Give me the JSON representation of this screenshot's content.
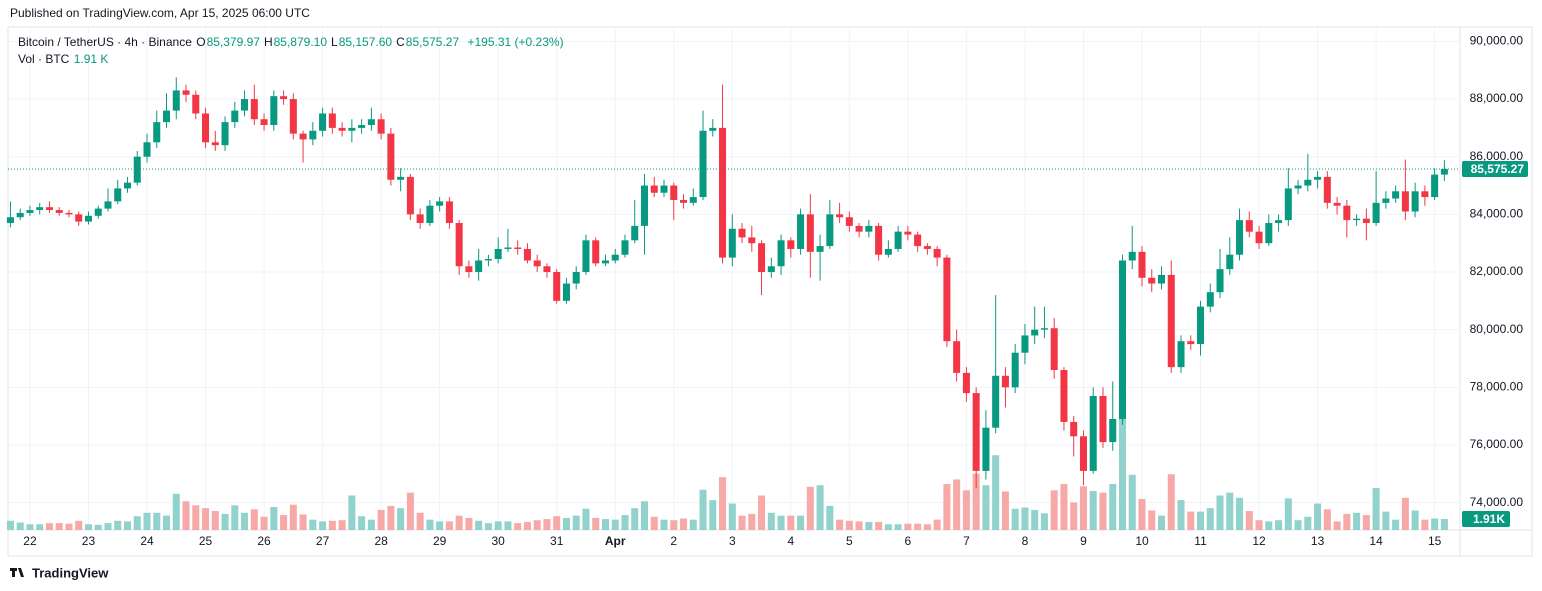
{
  "header": {
    "published": "Published on TradingView.com, Apr 15, 2025 06:00 UTC",
    "symbol": "Bitcoin / TetherUS · 4h · Binance",
    "ohlc": [
      {
        "key": "O",
        "value": "85,379.97"
      },
      {
        "key": "H",
        "value": "85,879.10"
      },
      {
        "key": "L",
        "value": "85,157.60"
      },
      {
        "key": "C",
        "value": "85,575.27"
      }
    ],
    "change": "+195.31 (+0.23%)",
    "vol_name": "Vol · BTC",
    "vol_value": "1.91 K"
  },
  "footer": {
    "brand": "TradingView"
  },
  "chart_data": {
    "type": "candlestick",
    "up_color": "#089981",
    "down_color": "#f23645",
    "volume_up_color": "#92d2cc",
    "volume_down_color": "#f7a9a7",
    "grid": true,
    "ylim": [
      73050,
      90500
    ],
    "yticks": [
      {
        "value": 74000,
        "label": "74,000.00"
      },
      {
        "value": 76000,
        "label": "76,000.00"
      },
      {
        "value": 78000,
        "label": "78,000.00"
      },
      {
        "value": 80000,
        "label": "80,000.00"
      },
      {
        "value": 82000,
        "label": "82,000.00"
      },
      {
        "value": 84000,
        "label": "84,000.00"
      },
      {
        "value": 86000,
        "label": "86,000.00"
      },
      {
        "value": 88000,
        "label": "88,000.00"
      },
      {
        "value": 90000,
        "label": "90,000.00"
      }
    ],
    "xlim": [
      -0.25,
      148.6
    ],
    "xticks": [
      {
        "value": 2,
        "label": "22"
      },
      {
        "value": 8,
        "label": "23"
      },
      {
        "value": 14,
        "label": "24"
      },
      {
        "value": 20,
        "label": "25"
      },
      {
        "value": 26,
        "label": "26"
      },
      {
        "value": 32,
        "label": "27"
      },
      {
        "value": 38,
        "label": "28"
      },
      {
        "value": 44,
        "label": "29"
      },
      {
        "value": 50,
        "label": "30"
      },
      {
        "value": 56,
        "label": "31"
      },
      {
        "value": 62,
        "label": "Apr"
      },
      {
        "value": 68,
        "label": "2"
      },
      {
        "value": 74,
        "label": "3"
      },
      {
        "value": 80,
        "label": "4"
      },
      {
        "value": 86,
        "label": "5"
      },
      {
        "value": 92,
        "label": "6"
      },
      {
        "value": 98,
        "label": "7"
      },
      {
        "value": 104,
        "label": "8"
      },
      {
        "value": 110,
        "label": "9"
      },
      {
        "value": 116,
        "label": "10"
      },
      {
        "value": 122,
        "label": "11"
      },
      {
        "value": 128,
        "label": "12"
      },
      {
        "value": 134,
        "label": "13"
      },
      {
        "value": 140,
        "label": "14"
      },
      {
        "value": 146,
        "label": "15"
      }
    ],
    "open": [
      83700,
      83900,
      84050,
      84150,
      84250,
      84150,
      84050,
      84000,
      83750,
      83950,
      84200,
      84450,
      84900,
      85100,
      86000,
      86500,
      87200,
      87600,
      88300,
      88150,
      87500,
      86500,
      86400,
      87200,
      87600,
      88000,
      87300,
      87100,
      88100,
      88000,
      86800,
      86600,
      86900,
      87500,
      87000,
      86900,
      87000,
      87100,
      87300,
      86800,
      85200,
      85300,
      84000,
      83700,
      84300,
      84450,
      83700,
      82200,
      82000,
      82400,
      82450,
      82800,
      82850,
      82800,
      82400,
      82200,
      82000,
      81000,
      81600,
      82000,
      83100,
      82300,
      82400,
      82600,
      83100,
      83600,
      85000,
      84750,
      85000,
      84500,
      84400,
      84600,
      86900,
      87000,
      82500,
      83500,
      83200,
      83000,
      82000,
      82200,
      83100,
      82800,
      84000,
      82700,
      82900,
      84000,
      83900,
      83600,
      83400,
      83600,
      82600,
      82800,
      83400,
      83300,
      82900,
      82800,
      82500,
      79600,
      78500,
      77800,
      75100,
      76600,
      78400,
      78000,
      79200,
      79800,
      80000,
      80050,
      78600,
      76800,
      76300,
      75100,
      77700,
      76100,
      76900,
      82400,
      82700,
      81800,
      81600,
      81900,
      78700,
      79600,
      79500,
      80800,
      81300,
      82100,
      82600,
      83800,
      83400,
      83000,
      83700,
      83800,
      84900,
      85000,
      85200,
      85300,
      84400,
      84300,
      83800,
      83850,
      83700,
      84400,
      84550,
      84800,
      84100,
      84800,
      84600,
      85379.97
    ],
    "high": [
      84450,
      84200,
      84300,
      84400,
      84450,
      84250,
      84150,
      84100,
      84100,
      84300,
      84900,
      85200,
      85300,
      86200,
      86800,
      87600,
      88200,
      88750,
      88500,
      88300,
      87700,
      86900,
      87400,
      87900,
      88300,
      88500,
      87500,
      88300,
      88300,
      88200,
      86900,
      87200,
      87700,
      87700,
      87200,
      87300,
      87300,
      87700,
      87500,
      87000,
      85600,
      85400,
      84200,
      84500,
      84600,
      84600,
      83800,
      82400,
      82800,
      82600,
      83200,
      83500,
      83100,
      83000,
      82600,
      82300,
      82100,
      81800,
      82200,
      83300,
      83200,
      82600,
      82800,
      83300,
      84500,
      85400,
      85300,
      85200,
      85100,
      84700,
      84900,
      87600,
      87300,
      88500,
      84000,
      83700,
      83600,
      83100,
      82500,
      83300,
      83200,
      84200,
      84700,
      83300,
      84500,
      84400,
      84100,
      83700,
      83800,
      83700,
      83100,
      83600,
      83600,
      83400,
      83000,
      82900,
      82600,
      80000,
      78700,
      78000,
      77200,
      81200,
      78700,
      79500,
      80200,
      80800,
      80800,
      80400,
      78700,
      77000,
      76500,
      78000,
      78000,
      78200,
      82600,
      83600,
      82900,
      82100,
      82200,
      82400,
      79800,
      79800,
      81000,
      81600,
      82800,
      83200,
      84200,
      84100,
      83600,
      84000,
      84000,
      85600,
      85200,
      86100,
      85500,
      85500,
      84600,
      84500,
      84000,
      84200,
      85500,
      84800,
      85000,
      85900,
      85100,
      85000,
      85600,
      85879.1
    ],
    "low": [
      83550,
      83800,
      83950,
      84000,
      84050,
      83950,
      83900,
      83600,
      83650,
      83850,
      84100,
      84350,
      84750,
      85000,
      85800,
      86300,
      87000,
      87300,
      87900,
      87300,
      86300,
      86200,
      86200,
      87000,
      87400,
      87100,
      86900,
      86900,
      87800,
      86600,
      85800,
      86400,
      86700,
      86800,
      86700,
      86500,
      86800,
      86900,
      86600,
      85000,
      84800,
      83800,
      83500,
      83600,
      84100,
      83500,
      81900,
      81800,
      81700,
      82200,
      82300,
      82700,
      82600,
      82300,
      82000,
      81800,
      80900,
      80900,
      81400,
      81900,
      82200,
      82200,
      82300,
      82500,
      83000,
      82600,
      84600,
      84600,
      83800,
      84200,
      84300,
      84500,
      86700,
      82300,
      82200,
      83000,
      82700,
      81200,
      81800,
      81900,
      82500,
      82600,
      81800,
      81700,
      82800,
      83700,
      83400,
      83200,
      83200,
      82400,
      82500,
      82700,
      83100,
      82700,
      82600,
      82200,
      79400,
      78200,
      77500,
      74500,
      74800,
      76400,
      77300,
      77800,
      78800,
      79500,
      79700,
      78300,
      76500,
      75600,
      74600,
      75000,
      75900,
      75800,
      76700,
      82100,
      81500,
      81300,
      81400,
      78500,
      78500,
      79300,
      79100,
      80600,
      81100,
      81900,
      82400,
      83200,
      82800,
      82900,
      83400,
      83600,
      84700,
      84800,
      84900,
      84200,
      84000,
      83200,
      83600,
      83100,
      83600,
      84200,
      84400,
      83800,
      83900,
      84300,
      84500,
      85157.6
    ],
    "close": [
      83900,
      84050,
      84150,
      84250,
      84150,
      84050,
      84000,
      83750,
      83950,
      84200,
      84450,
      84900,
      85100,
      86000,
      86500,
      87200,
      87600,
      88300,
      88150,
      87500,
      86500,
      86400,
      87200,
      87600,
      88000,
      87300,
      87100,
      88100,
      88000,
      86800,
      86600,
      86900,
      87500,
      87000,
      86900,
      87000,
      87100,
      87300,
      86800,
      85200,
      85300,
      84000,
      83700,
      84300,
      84450,
      83700,
      82200,
      82000,
      82400,
      82450,
      82800,
      82850,
      82800,
      82400,
      82200,
      82000,
      81000,
      81600,
      82000,
      83100,
      82300,
      82400,
      82600,
      83100,
      83600,
      85000,
      84750,
      85000,
      84500,
      84400,
      84600,
      86900,
      87000,
      82500,
      83500,
      83200,
      83000,
      82000,
      82200,
      83100,
      82800,
      84000,
      82700,
      82900,
      84000,
      83900,
      83600,
      83400,
      83600,
      82600,
      82800,
      83400,
      83300,
      82900,
      82800,
      82500,
      79600,
      78500,
      77800,
      75100,
      76600,
      78400,
      78000,
      79200,
      79800,
      80000,
      80050,
      78600,
      76800,
      76300,
      75100,
      77700,
      76100,
      76900,
      82400,
      82700,
      81800,
      81600,
      81900,
      78700,
      79600,
      79500,
      80800,
      81300,
      82100,
      82600,
      83800,
      83400,
      83000,
      83700,
      83800,
      84900,
      85000,
      85200,
      85300,
      84400,
      84300,
      83800,
      83850,
      83700,
      84400,
      84550,
      84800,
      84100,
      84800,
      84600,
      85379.97,
      85575.27
    ],
    "volume": [
      1600,
      1300,
      1000,
      1000,
      1200,
      1200,
      1100,
      1600,
      1000,
      900,
      1200,
      1600,
      1500,
      2400,
      3000,
      3000,
      2500,
      6300,
      5000,
      4300,
      3800,
      3300,
      2800,
      4300,
      3000,
      3600,
      2300,
      4000,
      2600,
      4400,
      2700,
      1800,
      1500,
      1600,
      1700,
      6000,
      2400,
      1800,
      3500,
      4200,
      3800,
      6500,
      3000,
      1800,
      1500,
      1500,
      2500,
      2100,
      1600,
      1200,
      1500,
      1500,
      1200,
      1400,
      1700,
      1900,
      2400,
      2100,
      2500,
      3700,
      2100,
      1900,
      1800,
      2600,
      3800,
      5000,
      2300,
      1800,
      1700,
      2000,
      1800,
      7000,
      5200,
      9200,
      4600,
      2500,
      2800,
      6000,
      3000,
      2500,
      2500,
      2500,
      7500,
      7800,
      4200,
      1800,
      1600,
      1500,
      1400,
      1400,
      1000,
      1000,
      1100,
      1100,
      1000,
      1800,
      8000,
      8800,
      6900,
      9800,
      7800,
      13000,
      6700,
      3700,
      3900,
      3500,
      2900,
      6900,
      8000,
      4800,
      7600,
      6800,
      6500,
      8000,
      21000,
      9600,
      5400,
      3400,
      2500,
      9700,
      5200,
      3200,
      3200,
      3800,
      6000,
      6500,
      5600,
      3300,
      1700,
      1500,
      1700,
      5500,
      1700,
      2300,
      4600,
      3600,
      1500,
      2800,
      3000,
      2600,
      7300,
      3200,
      1800,
      5600,
      3400,
      1800,
      2000,
      1910
    ],
    "volume_ylim": [
      0,
      87500
    ],
    "last_price_label": "85,575.27",
    "last_volume_label": "1.91K"
  }
}
